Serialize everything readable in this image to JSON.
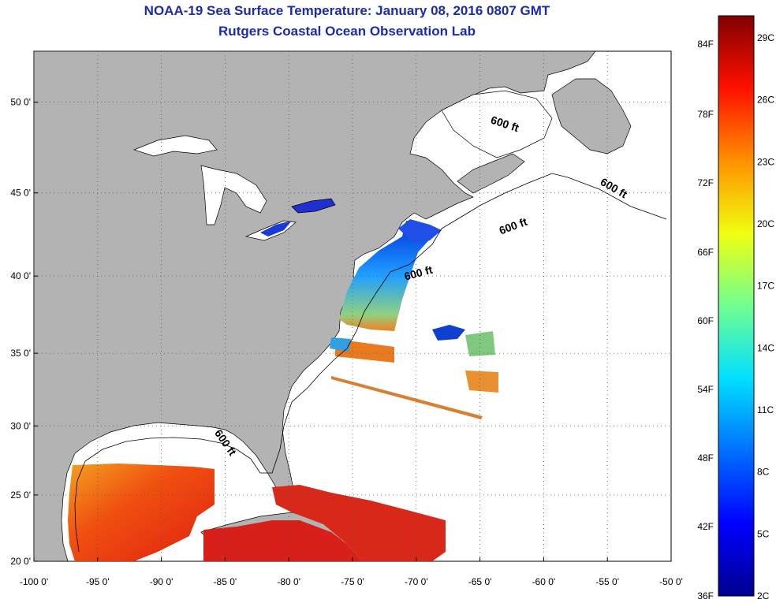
{
  "title_line1": "NOAA-19 Sea Surface Temperature:  January 08, 2016 0807 GMT",
  "title_line2": "Rutgers Coastal Ocean Observation Lab",
  "map": {
    "lat_labels": [
      "50 0'",
      "45 0'",
      "40 0'",
      "35 0'",
      "30 0'",
      "25 0'",
      "20 0'"
    ],
    "lat_values": [
      50,
      45,
      40,
      35,
      30,
      25,
      20
    ],
    "lon_labels": [
      "-100 0'",
      "-95 0'",
      "-90 0'",
      "-85 0'",
      "-80 0'",
      "-75 0'",
      "-70 0'",
      "-65 0'",
      "-60 0'",
      "-55 0'",
      "-50 0'"
    ],
    "lon_values": [
      -100,
      -95,
      -90,
      -85,
      -80,
      -75,
      -70,
      -65,
      -60,
      -55,
      -50
    ],
    "lon_range": [
      -100,
      -50
    ],
    "lat_range": [
      20,
      52.6
    ],
    "grid": true,
    "contour_label": "600 ft",
    "contour_label_count": 5,
    "land_color": "#b3b3b3",
    "ocean_color": "#ffffff"
  },
  "colorbar": {
    "fahrenheit_labels": [
      "84F",
      "78F",
      "72F",
      "66F",
      "60F",
      "54F",
      "48F",
      "42F",
      "36F"
    ],
    "celsius_labels": [
      "29C",
      "26C",
      "23C",
      "20C",
      "17C",
      "14C",
      "11C",
      "8C",
      "5C",
      "2C"
    ],
    "range_c": [
      2,
      30
    ],
    "colors": [
      "#00008f",
      "#0000ff",
      "#0080ff",
      "#00ffff",
      "#80ff80",
      "#ffff00",
      "#ff8000",
      "#ff0000",
      "#800000"
    ]
  }
}
